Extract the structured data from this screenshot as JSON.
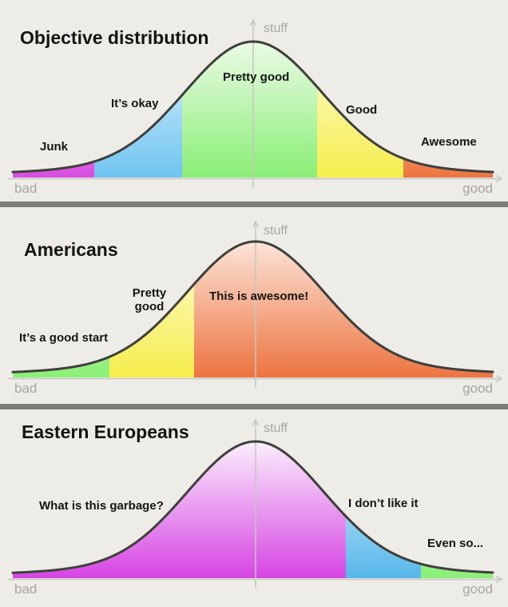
{
  "page": {
    "background": "#edece7",
    "divider_color": "#7b7d76",
    "curve_color": "#3f3f3c",
    "axis_color": "#c6c6c2",
    "axis_text_color": "#a7a7a3",
    "label_text_color": "#151515"
  },
  "chart_data": [
    {
      "type": "area",
      "title": "Objective distribution",
      "ylabel": "stuff",
      "xlabel_left": "bad",
      "xlabel_right": "good",
      "curve": "bell",
      "segments": [
        {
          "label": "Junk",
          "from": 16,
          "to": 118,
          "color": "#d84ee2",
          "color_light": "#f6dcf8"
        },
        {
          "label": "It’s okay",
          "from": 118,
          "to": 228,
          "color": "#6fc4f1",
          "color_light": "#e0f2fb"
        },
        {
          "label": "Pretty good",
          "from": 228,
          "to": 397,
          "color": "#8aef76",
          "color_light": "#eafae5"
        },
        {
          "label": "Good",
          "from": 397,
          "to": 505,
          "color": "#f5ee4b",
          "color_light": "#fdfbd8"
        },
        {
          "label": "Awesome",
          "from": 505,
          "to": 617,
          "color": "#ec7440",
          "color_light": "#fce4d8"
        }
      ]
    },
    {
      "type": "area",
      "title": "Americans",
      "ylabel": "stuff",
      "xlabel_left": "bad",
      "xlabel_right": "good",
      "curve": "bell",
      "segments": [
        {
          "label": "It’s a good start",
          "from": 16,
          "to": 137,
          "color": "#8aef76",
          "color_light": "#eafae5"
        },
        {
          "label": "Pretty good",
          "from": 137,
          "to": 243,
          "color": "#f5ee4b",
          "color_light": "#fdfbd8"
        },
        {
          "label": "This is awesome!",
          "from": 243,
          "to": 617,
          "color": "#ec7440",
          "color_light": "#fce4d8"
        }
      ]
    },
    {
      "type": "area",
      "title": "Eastern Europeans",
      "ylabel": "stuff",
      "xlabel_left": "bad",
      "xlabel_right": "good",
      "curve": "bell",
      "segments": [
        {
          "label": "What is this garbage?",
          "from": 16,
          "to": 433,
          "color": "#d645e3",
          "color_light": "#fbeefc"
        },
        {
          "label": "I don’t like it",
          "from": 433,
          "to": 527,
          "color": "#56b8ea",
          "color_light": "#def0fa"
        },
        {
          "label": "Even so...",
          "from": 527,
          "to": 617,
          "color": "#8aef76",
          "color_light": "#eafae5"
        }
      ]
    }
  ]
}
